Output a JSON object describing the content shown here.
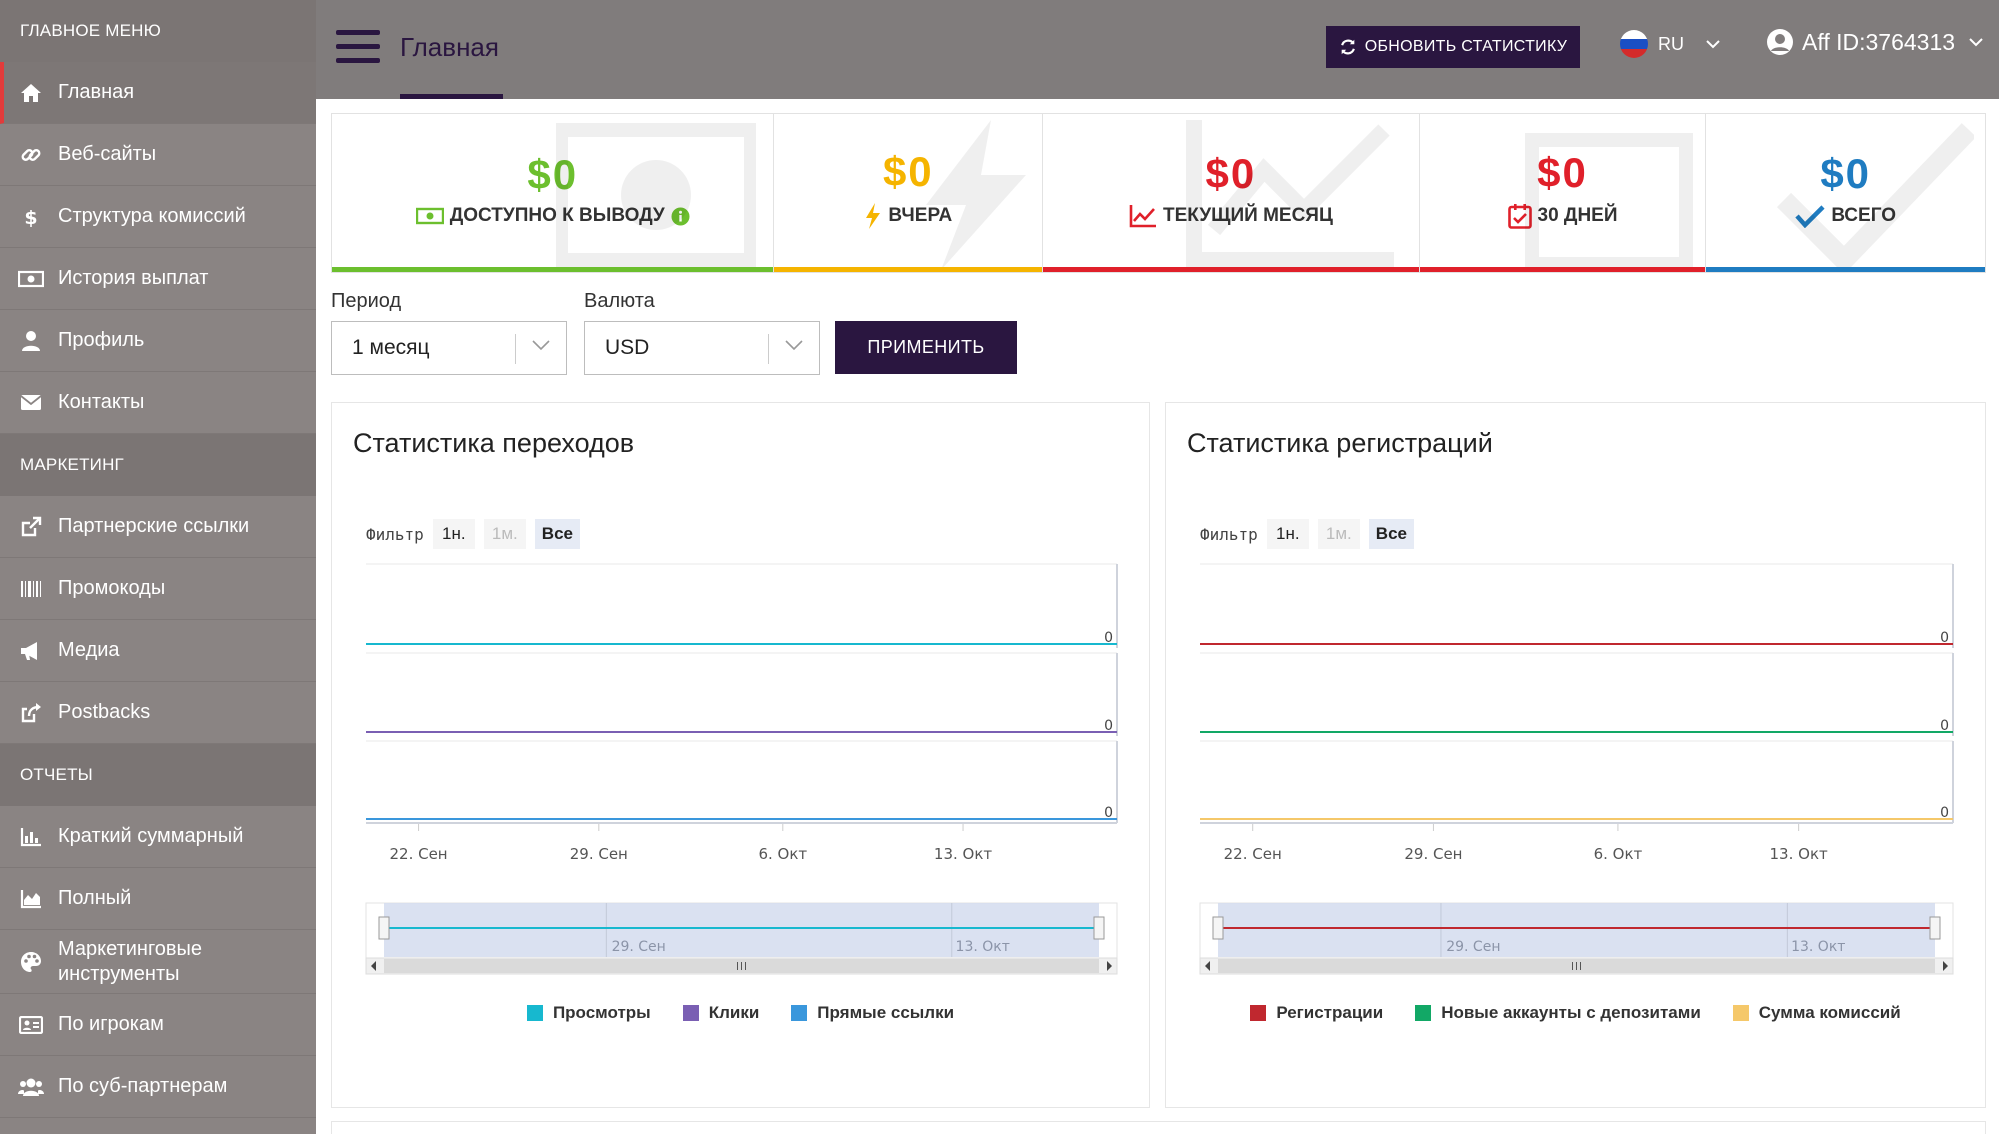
{
  "sidebar": {
    "sections": [
      {
        "title": "ГЛАВНОЕ МЕНЮ",
        "items": [
          {
            "label": "Главная",
            "icon": "home-icon",
            "active": true
          },
          {
            "label": "Веб-сайты",
            "icon": "link-icon"
          },
          {
            "label": "Структура комиссий",
            "icon": "dollar-icon"
          },
          {
            "label": "История выплат",
            "icon": "money-icon"
          },
          {
            "label": "Профиль",
            "icon": "user-icon"
          },
          {
            "label": "Контакты",
            "icon": "envelope-icon"
          }
        ]
      },
      {
        "title": "МАРКЕТИНГ",
        "items": [
          {
            "label": "Партнерские ссылки",
            "icon": "external-link-icon"
          },
          {
            "label": "Промокоды",
            "icon": "barcode-icon"
          },
          {
            "label": "Медиа",
            "icon": "megaphone-icon"
          },
          {
            "label": "Postbacks",
            "icon": "share-icon"
          }
        ]
      },
      {
        "title": "ОТЧЕТЫ",
        "items": [
          {
            "label": "Краткий суммарный",
            "icon": "bar-chart-icon"
          },
          {
            "label": "Полный",
            "icon": "area-chart-icon"
          },
          {
            "label": "Маркетинговые инструменты",
            "icon": "palette-icon"
          },
          {
            "label": "По игрокам",
            "icon": "id-card-icon"
          },
          {
            "label": "По суб-партнерам",
            "icon": "users-icon"
          }
        ]
      }
    ]
  },
  "header": {
    "title": "Главная",
    "refresh_label": "ОБНОВИТЬ СТАТИСТИКУ",
    "language": "RU",
    "account": "Aff ID:3764313"
  },
  "stats": [
    {
      "value": "$0",
      "label": "ДОСТУПНО К ВЫВОДУ",
      "icon": "money-icon",
      "color": "#6cbf2e",
      "has_info": true
    },
    {
      "value": "$0",
      "label": "ВЧЕРА",
      "icon": "bolt-icon",
      "color": "#f5b400"
    },
    {
      "value": "$0",
      "label": "ТЕКУЩИЙ МЕСЯЦ",
      "icon": "line-chart-icon",
      "color": "#e0202a"
    },
    {
      "value": "$0",
      "label": "30 ДНЕЙ",
      "icon": "calendar-check-icon",
      "color": "#e0202a"
    },
    {
      "value": "$0",
      "label": "ВСЕГО",
      "icon": "check-icon",
      "color": "#1f7cc1"
    }
  ],
  "filters": {
    "period_label": "Период",
    "period_value": "1 месяц",
    "currency_label": "Валюта",
    "currency_value": "USD",
    "apply_label": "ПРИМЕНИТЬ"
  },
  "chart_data": [
    {
      "type": "line",
      "title": "Статистика переходов",
      "filter_label": "Фильтр",
      "filter_buttons": [
        {
          "label": "1н.",
          "state": "normal"
        },
        {
          "label": "1м.",
          "state": "disabled"
        },
        {
          "label": "Все",
          "state": "selected"
        }
      ],
      "x_ticks": [
        "22. Сен",
        "29. Сен",
        "6. Окт",
        "13. Окт"
      ],
      "navigator_ticks": [
        "29. Сен",
        "13. Окт"
      ],
      "series": [
        {
          "name": "Просмотры",
          "color": "#17b8cf",
          "values": [
            0,
            0,
            0,
            0,
            0
          ]
        },
        {
          "name": "Клики",
          "color": "#7a5fb3",
          "values": [
            0,
            0,
            0,
            0,
            0
          ]
        },
        {
          "name": "Прямые ссылки",
          "color": "#3a97dc",
          "values": [
            0,
            0,
            0,
            0,
            0
          ]
        }
      ],
      "panel_value_label": "0"
    },
    {
      "type": "line",
      "title": "Статистика регистраций",
      "filter_label": "Фильтр",
      "filter_buttons": [
        {
          "label": "1н.",
          "state": "normal"
        },
        {
          "label": "1м.",
          "state": "disabled"
        },
        {
          "label": "Все",
          "state": "selected"
        }
      ],
      "x_ticks": [
        "22. Сен",
        "29. Сен",
        "6. Окт",
        "13. Окт"
      ],
      "navigator_ticks": [
        "29. Сен",
        "13. Окт"
      ],
      "series": [
        {
          "name": "Регистрации",
          "color": "#c0282f",
          "values": [
            0,
            0,
            0,
            0,
            0
          ]
        },
        {
          "name": "Новые аккаунты с депозитами",
          "color": "#12a866",
          "values": [
            0,
            0,
            0,
            0,
            0
          ]
        },
        {
          "name": "Сумма комиссий",
          "color": "#f5c86a",
          "values": [
            0,
            0,
            0,
            0,
            0
          ]
        }
      ],
      "panel_value_label": "0"
    }
  ]
}
